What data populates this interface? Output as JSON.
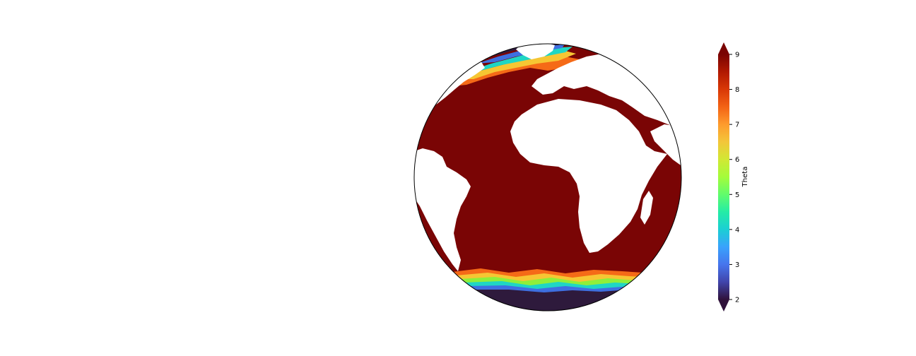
{
  "map": {
    "projection": "orthographic",
    "ocean_color": "#7a0505",
    "land_color": "#ffffff",
    "outline_color": "#000000",
    "polar_field_colors": {
      "cold": "#2e1a3c",
      "blue": "#3e6fe0",
      "cyan": "#1fd6c4",
      "green": "#8fef3a",
      "yellow": "#f6c633",
      "orange": "#f56a17"
    }
  },
  "colorbar": {
    "label": "Theta",
    "min": 2,
    "max": 9,
    "extend": "both",
    "ticks": [
      "2",
      "3",
      "4",
      "5",
      "6",
      "7",
      "8",
      "9"
    ],
    "colormap": "turbo",
    "stops": [
      "#30123b",
      "#4145ab",
      "#4675ed",
      "#39a2fc",
      "#1bcfd4",
      "#24eca6",
      "#61fc6c",
      "#a4fc3b",
      "#d1e834",
      "#f3c63a",
      "#fe9b2d",
      "#f36315",
      "#d93806",
      "#b11901",
      "#7a0403"
    ]
  }
}
